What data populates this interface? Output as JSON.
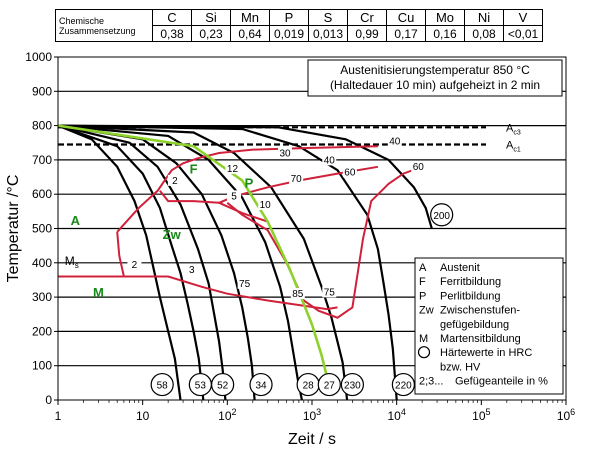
{
  "composition": {
    "label_line1": "Chemische",
    "label_line2": "Zusammensetzung",
    "elements": [
      "C",
      "Si",
      "Mn",
      "P",
      "S",
      "Cr",
      "Cu",
      "Mo",
      "Ni",
      "V"
    ],
    "values": [
      "0,38",
      "0,23",
      "0,64",
      "0,019",
      "0,013",
      "0,99",
      "0,17",
      "0,16",
      "0,08",
      "<0,01"
    ]
  },
  "chart_data": {
    "type": "line",
    "title_line1": "Austenitisierungstemperatur 850 °C",
    "title_line2": "(Haltedauer 10 min) aufgeheizt in 2 min",
    "xlabel": "Zeit  / s",
    "ylabel": "Temperatur  /°C",
    "xscale": "log",
    "xlim": [
      1,
      1000000
    ],
    "ylim": [
      0,
      1000
    ],
    "xticks": [
      {
        "v": 1,
        "label": "1"
      },
      {
        "v": 10,
        "label": "10"
      },
      {
        "v": 100,
        "label": "10",
        "exp": "2"
      },
      {
        "v": 1000,
        "label": "10",
        "exp": "3"
      },
      {
        "v": 10000,
        "label": "10",
        "exp": "4"
      },
      {
        "v": 100000,
        "label": "10",
        "exp": "5"
      },
      {
        "v": 1000000,
        "label": "10",
        "exp": "6"
      }
    ],
    "yticks": [
      0,
      100,
      200,
      300,
      400,
      500,
      600,
      700,
      800,
      900,
      1000
    ],
    "grid": "horizontal",
    "ac3": {
      "label": "A",
      "sub": "c3",
      "temp": 795
    },
    "ac1": {
      "label": "A",
      "sub": "c1",
      "temp": 745
    },
    "ms": {
      "label": "M",
      "sub": "s",
      "temp": 405
    },
    "cooling_curves": [
      [
        [
          1,
          800
        ],
        [
          2.5,
          760
        ],
        [
          5,
          680
        ],
        [
          8,
          580
        ],
        [
          11,
          480
        ],
        [
          13,
          400
        ],
        [
          16,
          300
        ],
        [
          20,
          200
        ],
        [
          24,
          120
        ],
        [
          28,
          0
        ]
      ],
      [
        [
          1,
          800
        ],
        [
          5,
          740
        ],
        [
          10,
          660
        ],
        [
          16,
          560
        ],
        [
          22,
          450
        ],
        [
          28,
          370
        ],
        [
          34,
          280
        ],
        [
          40,
          200
        ],
        [
          46,
          120
        ],
        [
          52,
          0
        ]
      ],
      [
        [
          1,
          800
        ],
        [
          7,
          750
        ],
        [
          15,
          680
        ],
        [
          28,
          570
        ],
        [
          45,
          440
        ],
        [
          60,
          340
        ],
        [
          70,
          250
        ],
        [
          80,
          170
        ],
        [
          88,
          90
        ],
        [
          95,
          0
        ]
      ],
      [
        [
          1,
          800
        ],
        [
          10,
          760
        ],
        [
          25,
          690
        ],
        [
          50,
          600
        ],
        [
          85,
          480
        ],
        [
          120,
          370
        ],
        [
          150,
          270
        ],
        [
          175,
          180
        ],
        [
          195,
          100
        ],
        [
          210,
          0
        ]
      ],
      [
        [
          1,
          800
        ],
        [
          20,
          770
        ],
        [
          60,
          700
        ],
        [
          150,
          590
        ],
        [
          280,
          460
        ],
        [
          420,
          330
        ],
        [
          520,
          230
        ],
        [
          600,
          140
        ],
        [
          680,
          60
        ],
        [
          760,
          0
        ]
      ],
      [
        [
          1,
          800
        ],
        [
          40,
          780
        ],
        [
          120,
          720
        ],
        [
          330,
          620
        ],
        [
          800,
          470
        ],
        [
          1300,
          330
        ],
        [
          1700,
          240
        ],
        [
          2000,
          170
        ],
        [
          2300,
          110
        ],
        [
          2600,
          0
        ]
      ],
      [
        [
          1,
          800
        ],
        [
          150,
          790
        ],
        [
          700,
          740
        ],
        [
          2000,
          670
        ],
        [
          4500,
          540
        ],
        [
          6000,
          440
        ],
        [
          7000,
          340
        ],
        [
          8000,
          250
        ],
        [
          9000,
          150
        ],
        [
          10000,
          0
        ]
      ],
      [
        [
          1,
          800
        ],
        [
          400,
          795
        ],
        [
          2500,
          760
        ],
        [
          8000,
          700
        ],
        [
          16000,
          620
        ],
        [
          22000,
          560
        ],
        [
          26000,
          500
        ]
      ]
    ],
    "green_curve": [
      [
        1,
        800
      ],
      [
        40,
        740
      ],
      [
        150,
        640
      ],
      [
        300,
        520
      ],
      [
        550,
        380
      ],
      [
        800,
        280
      ],
      [
        1000,
        220
      ],
      [
        1300,
        130
      ],
      [
        1600,
        40
      ]
    ],
    "red_curves": [
      [
        [
          5,
          490
        ],
        [
          9,
          560
        ],
        [
          15,
          610
        ],
        [
          22,
          670
        ],
        [
          30,
          690
        ],
        [
          45,
          705
        ],
        [
          80,
          720
        ],
        [
          200,
          730
        ],
        [
          1000,
          735
        ],
        [
          6000,
          740
        ]
      ],
      [
        [
          5,
          490
        ],
        [
          5.3,
          420
        ],
        [
          6,
          360
        ]
      ],
      [
        [
          16,
          610
        ],
        [
          20,
          580
        ],
        [
          40,
          580
        ],
        [
          80,
          575
        ],
        [
          88,
          575
        ]
      ],
      [
        [
          6,
          360
        ],
        [
          20,
          360
        ],
        [
          50,
          330
        ],
        [
          100,
          310
        ],
        [
          300,
          290
        ],
        [
          800,
          275
        ],
        [
          1500,
          265
        ],
        [
          2000,
          270
        ]
      ],
      [
        [
          80,
          575
        ],
        [
          100,
          585
        ],
        [
          150,
          600
        ],
        [
          300,
          620
        ],
        [
          700,
          640
        ],
        [
          2000,
          660
        ],
        [
          6000,
          680
        ]
      ],
      [
        [
          100,
          575
        ],
        [
          150,
          540
        ],
        [
          300,
          495
        ],
        [
          500,
          400
        ],
        [
          800,
          290
        ],
        [
          1200,
          260
        ],
        [
          2000,
          240
        ],
        [
          3000,
          270
        ],
        [
          4000,
          470
        ],
        [
          5000,
          580
        ],
        [
          8000,
          630
        ],
        [
          12000,
          660
        ],
        [
          20000,
          680
        ]
      ],
      [
        [
          80,
          575
        ],
        [
          150,
          545
        ],
        [
          300,
          520
        ]
      ]
    ],
    "ms_line": [
      [
        1,
        360
      ],
      [
        6,
        360
      ]
    ],
    "phase_labels": [
      {
        "text": "A",
        "x": 1.6,
        "y": 510,
        "color": "#1a8a1a"
      },
      {
        "text": "F",
        "x": 40,
        "y": 660,
        "color": "#1a8a1a"
      },
      {
        "text": "P",
        "x": 180,
        "y": 620,
        "color": "#1a8a1a"
      },
      {
        "text": "Zw",
        "x": 22,
        "y": 470,
        "color": "#1a8a1a"
      },
      {
        "text": "M",
        "x": 3,
        "y": 300,
        "color": "#1a8a1a"
      }
    ],
    "annotations": [
      {
        "text": "40",
        "x": 9500,
        "y": 745
      },
      {
        "text": "30",
        "x": 480,
        "y": 710
      },
      {
        "text": "40",
        "x": 1600,
        "y": 690
      },
      {
        "text": "60",
        "x": 2800,
        "y": 655
      },
      {
        "text": "60",
        "x": 18000,
        "y": 670
      },
      {
        "text": "12",
        "x": 115,
        "y": 665
      },
      {
        "text": "70",
        "x": 650,
        "y": 635
      },
      {
        "text": "2",
        "x": 24,
        "y": 630
      },
      {
        "text": "5",
        "x": 120,
        "y": 585
      },
      {
        "text": "10",
        "x": 280,
        "y": 560
      },
      {
        "text": "2",
        "x": 8,
        "y": 385
      },
      {
        "text": "3",
        "x": 38,
        "y": 370
      },
      {
        "text": "75",
        "x": 160,
        "y": 330
      },
      {
        "text": "85",
        "x": 680,
        "y": 300
      },
      {
        "text": "75",
        "x": 1600,
        "y": 305
      }
    ],
    "hardness_circles": [
      {
        "value": "58",
        "x": 17
      },
      {
        "value": "53",
        "x": 48
      },
      {
        "value": "52",
        "x": 88
      },
      {
        "value": "34",
        "x": 250
      },
      {
        "value": "28",
        "x": 900
      },
      {
        "value": "27",
        "x": 1600
      },
      {
        "value": "230",
        "x": 3000
      },
      {
        "value": "220",
        "x": 12000
      }
    ],
    "hardness_extra": {
      "value": "200",
      "x": 34000,
      "y": 540
    },
    "legend": [
      {
        "key": "A",
        "text": "Austenit"
      },
      {
        "key": "F",
        "text": "Ferritbildung"
      },
      {
        "key": "P",
        "text": "Perlitbildung"
      },
      {
        "key": "Zw",
        "text": "Zwischenstufen-"
      },
      {
        "key": "",
        "text": "gefügebildung"
      },
      {
        "key": "M",
        "text": "Martensitbildung"
      },
      {
        "key": "O",
        "text": "Härtewerte in HRC"
      },
      {
        "key": "",
        "text": "bzw. HV"
      },
      {
        "key": "2;3...",
        "text": "Gefügeanteile in %"
      }
    ],
    "colors": {
      "black": "#000000",
      "red": "#d0203a",
      "green": "#8cd22a",
      "label_green": "#1a8a1a"
    }
  }
}
